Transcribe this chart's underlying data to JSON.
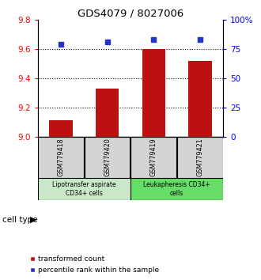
{
  "title": "GDS4079 / 8027006",
  "samples": [
    "GSM779418",
    "GSM779420",
    "GSM779419",
    "GSM779421"
  ],
  "transformed_counts": [
    9.11,
    9.33,
    9.6,
    9.52
  ],
  "percentile_ranks": [
    79,
    81,
    83,
    83
  ],
  "ylim_left": [
    9.0,
    9.8
  ],
  "ylim_right": [
    0,
    100
  ],
  "yticks_left": [
    9.0,
    9.2,
    9.4,
    9.6,
    9.8
  ],
  "yticks_right": [
    0,
    25,
    50,
    75,
    100
  ],
  "ytick_labels_right": [
    "0",
    "25",
    "50",
    "75",
    "100%"
  ],
  "bar_color": "#BB1111",
  "dot_color": "#2233CC",
  "cell_types": [
    "Lipotransfer aspirate\nCD34+ cells",
    "Leukapheresis CD34+\ncells"
  ],
  "cell_type_colors": [
    "#c8e8c8",
    "#66dd66"
  ],
  "sample_bg_color": "#d4d4d4",
  "legend_bar_label": "transformed count",
  "legend_dot_label": "percentile rank within the sample",
  "cell_type_label": "cell type"
}
